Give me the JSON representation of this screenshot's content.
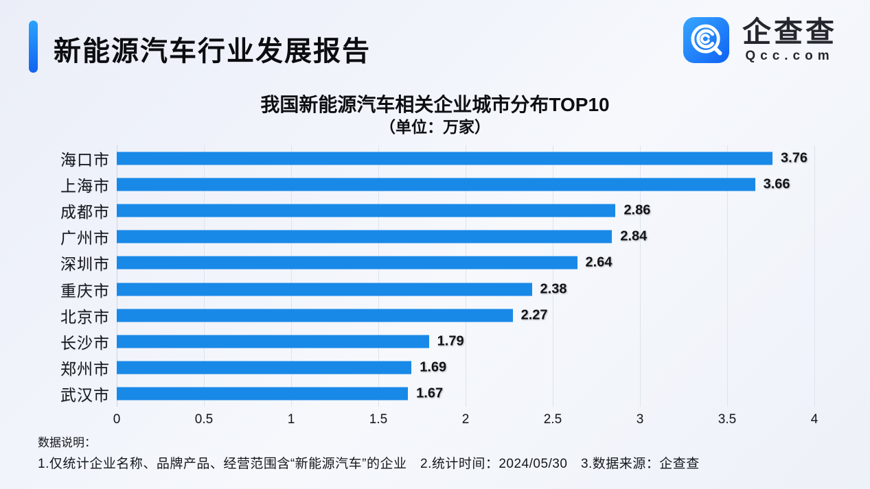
{
  "header": {
    "title": "新能源汽车行业发展报告"
  },
  "logo": {
    "name": "企查查",
    "domain": "Qcc.com"
  },
  "chart_data": {
    "type": "bar",
    "orientation": "horizontal",
    "title": "我国新能源汽车相关企业城市分布TOP10",
    "subtitle": "（单位：万家）",
    "unit": "万家",
    "categories": [
      "海口市",
      "上海市",
      "成都市",
      "广州市",
      "深圳市",
      "重庆市",
      "北京市",
      "长沙市",
      "郑州市",
      "武汉市"
    ],
    "values": [
      3.76,
      3.66,
      2.86,
      2.84,
      2.64,
      2.38,
      2.27,
      1.79,
      1.69,
      1.67
    ],
    "xlim": [
      0,
      4
    ],
    "xticks": [
      "0",
      "0.5",
      "1",
      "1.5",
      "2",
      "2.5",
      "3",
      "3.5",
      "4"
    ],
    "grid": "vertical",
    "legend": "none"
  },
  "footer": {
    "label": "数据说明：",
    "note": "1.仅统计企业名称、品牌产品、经营范围含“新能源汽车”的企业　2.统计时间：2024/05/30　3.数据来源：企查查"
  },
  "colors": {
    "bar": "#1989e8",
    "accent_top": "#2ba2fd",
    "accent_bottom": "#1263ef",
    "logo_blue_top": "#38a6ff",
    "logo_blue_bottom": "#0e62f3",
    "gridline": "#dde3ee",
    "background": "#eef1f9"
  }
}
